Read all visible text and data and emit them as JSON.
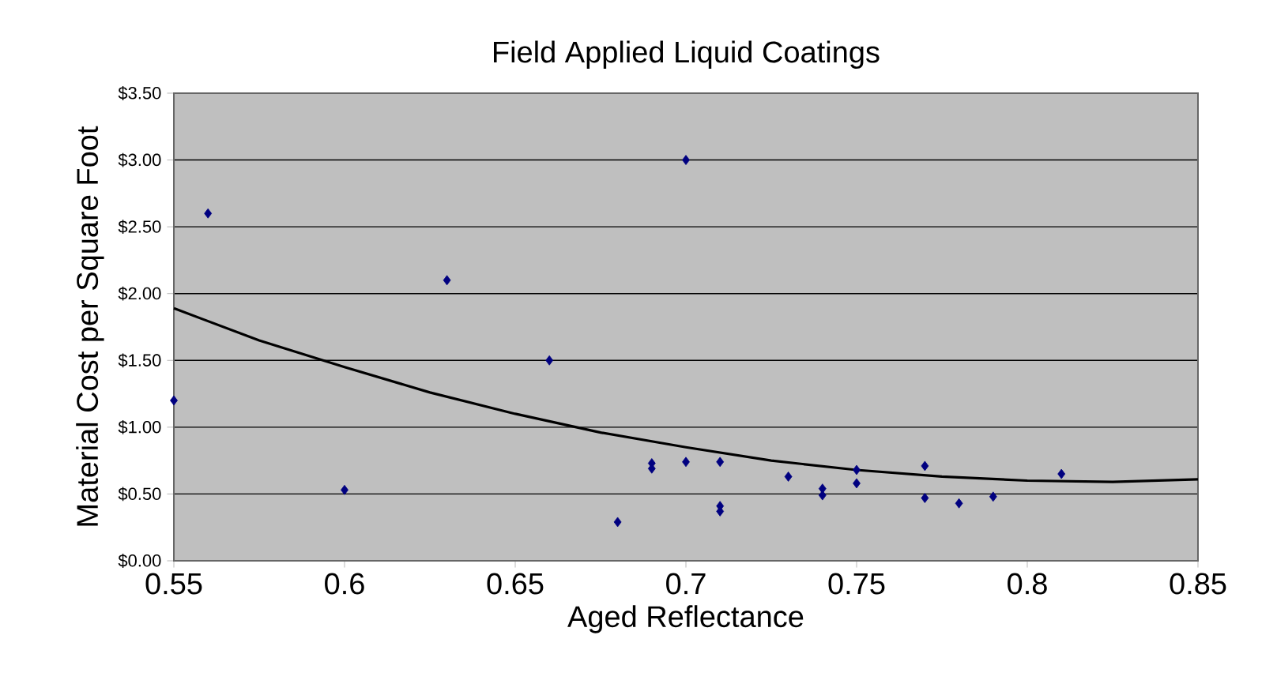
{
  "chart_data": {
    "type": "scatter",
    "title": "Field Applied Liquid Coatings",
    "xlabel": "Aged Reflectance",
    "ylabel": "Material Cost per Square Foot",
    "xlim": [
      0.55,
      0.85
    ],
    "xticks": [
      0.55,
      0.6,
      0.65,
      0.7,
      0.75,
      0.8,
      0.85
    ],
    "ylim": [
      0,
      3.5
    ],
    "yticks": [
      {
        "value": 0,
        "label": "$0.00"
      },
      {
        "value": 0.5,
        "label": "$0.50"
      },
      {
        "value": 1,
        "label": "$1.00"
      },
      {
        "value": 1.5,
        "label": "$1.50"
      },
      {
        "value": 2,
        "label": "$2.00"
      },
      {
        "value": 2.5,
        "label": "$2.50"
      },
      {
        "value": 3,
        "label": "$3.00"
      },
      {
        "value": 3.5,
        "label": "$3.50"
      }
    ],
    "grid": "y",
    "series": [
      {
        "color": "#000080",
        "marker": "diamond",
        "x": [
          0.55,
          0.56,
          0.6,
          0.63,
          0.66,
          0.68,
          0.69,
          0.69,
          0.7,
          0.7,
          0.71,
          0.71,
          0.71,
          0.73,
          0.74,
          0.74,
          0.75,
          0.75,
          0.77,
          0.77,
          0.78,
          0.79,
          0.81
        ],
        "values": [
          1.2,
          2.6,
          0.53,
          2.1,
          1.5,
          0.29,
          0.73,
          0.69,
          3.0,
          0.74,
          0.74,
          0.41,
          0.37,
          0.63,
          0.54,
          0.49,
          0.68,
          0.58,
          0.71,
          0.47,
          0.43,
          0.48,
          0.65
        ]
      },
      {
        "type": "line",
        "color": "#000000",
        "marker": "none",
        "x": [
          0.55,
          0.575,
          0.6,
          0.625,
          0.65,
          0.675,
          0.7,
          0.725,
          0.75,
          0.775,
          0.8,
          0.825,
          0.85
        ],
        "values": [
          1.89,
          1.65,
          1.45,
          1.26,
          1.1,
          0.96,
          0.85,
          0.75,
          0.68,
          0.63,
          0.6,
          0.59,
          0.61
        ]
      }
    ]
  }
}
